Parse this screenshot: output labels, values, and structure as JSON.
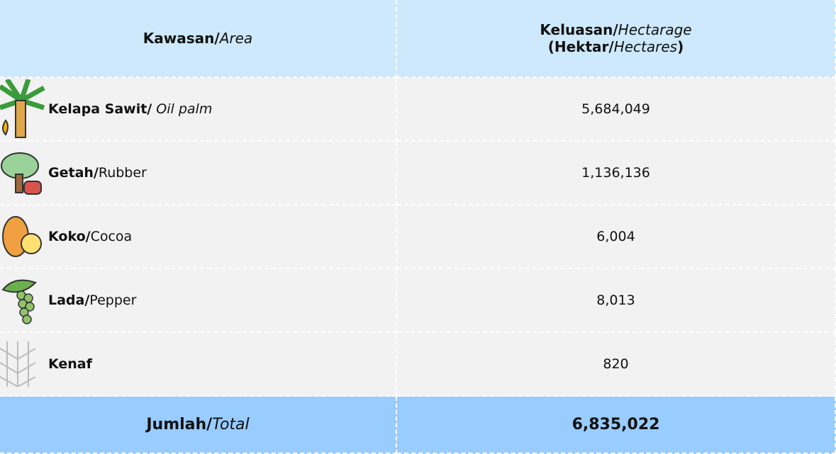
{
  "header": {
    "area": [
      "Kawasan/",
      "Area"
    ],
    "hectarage": [
      "Keluasan/",
      "Hectarage",
      "(Hektar/",
      "Hectares",
      ")"
    ]
  },
  "rows": [
    {
      "name": [
        "Kelapa Sawit/",
        " Oil palm"
      ],
      "value": "5,684,049"
    },
    {
      "name": [
        "Getah/",
        "Rubber"
      ],
      "value": "1,136,136"
    },
    {
      "name": [
        "Koko/",
        "Cocoa"
      ],
      "value": "6,004"
    },
    {
      "name": [
        "Lada/",
        "Pepper"
      ],
      "value": "8,013"
    },
    {
      "name": [
        "Kenaf"
      ],
      "value": "820"
    }
  ],
  "total": {
    "label": [
      "Jumlah/",
      "Total"
    ],
    "value": "6,835,022"
  }
}
